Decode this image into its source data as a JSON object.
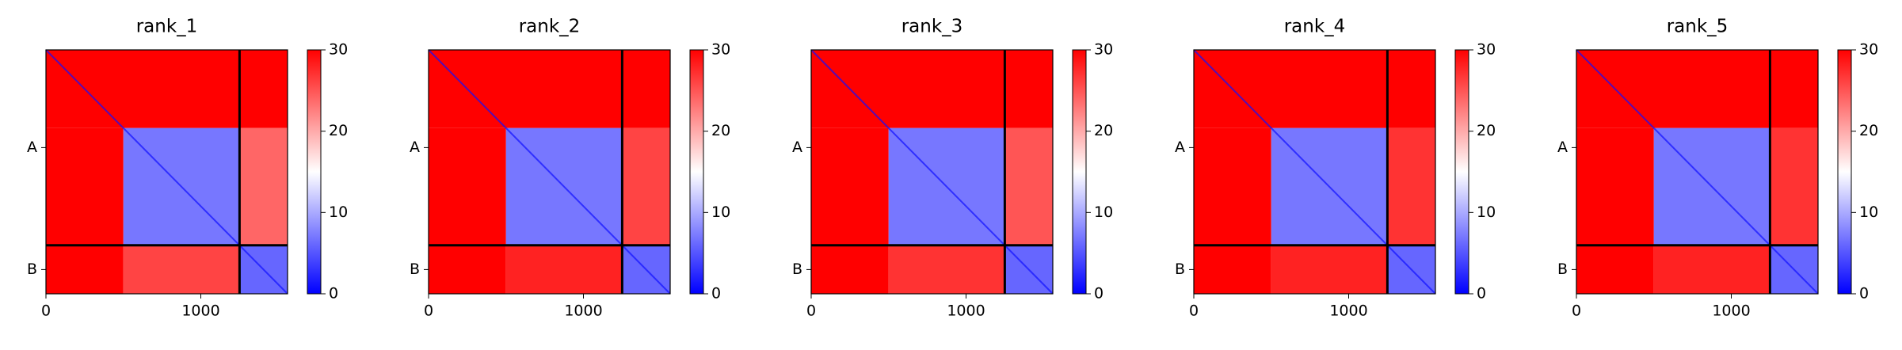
{
  "chart_data": [
    {
      "type": "heatmap",
      "title": "rank_1",
      "xlim": [
        0,
        1560
      ],
      "ylim": [
        1560,
        0
      ],
      "xticks": [
        0,
        1000
      ],
      "yticks": [
        {
          "value": 625,
          "label": "A"
        },
        {
          "value": 1405,
          "label": "B"
        }
      ],
      "chain_breaks": [
        1250
      ],
      "diagonal": 1,
      "clim": [
        0,
        30
      ],
      "cticks": [
        0,
        10,
        20,
        30
      ],
      "colormap": [
        "#0000ff",
        "#ffffff",
        "#ff0000"
      ],
      "cells": [
        {
          "x": [
            0,
            1560
          ],
          "y": [
            0,
            500
          ],
          "value": 30
        },
        {
          "x": [
            0,
            500
          ],
          "y": [
            500,
            1560
          ],
          "value": 30
        },
        {
          "x": [
            500,
            1250
          ],
          "y": [
            500,
            1250
          ],
          "value": 7
        },
        {
          "x": [
            1250,
            1560
          ],
          "y": [
            500,
            1250
          ],
          "value": 24
        },
        {
          "x": [
            500,
            1250
          ],
          "y": [
            1250,
            1560
          ],
          "value": 26
        },
        {
          "x": [
            1250,
            1560
          ],
          "y": [
            1250,
            1560
          ],
          "value": 6
        }
      ]
    },
    {
      "type": "heatmap",
      "title": "rank_2",
      "xlim": [
        0,
        1560
      ],
      "ylim": [
        1560,
        0
      ],
      "xticks": [
        0,
        1000
      ],
      "yticks": [
        {
          "value": 625,
          "label": "A"
        },
        {
          "value": 1405,
          "label": "B"
        }
      ],
      "chain_breaks": [
        1250
      ],
      "diagonal": 1,
      "clim": [
        0,
        30
      ],
      "cticks": [
        0,
        10,
        20,
        30
      ],
      "colormap": [
        "#0000ff",
        "#ffffff",
        "#ff0000"
      ],
      "cells": [
        {
          "x": [
            0,
            1560
          ],
          "y": [
            0,
            500
          ],
          "value": 30
        },
        {
          "x": [
            0,
            500
          ],
          "y": [
            500,
            1560
          ],
          "value": 30
        },
        {
          "x": [
            500,
            1250
          ],
          "y": [
            500,
            1250
          ],
          "value": 7
        },
        {
          "x": [
            1250,
            1560
          ],
          "y": [
            500,
            1250
          ],
          "value": 26
        },
        {
          "x": [
            500,
            1250
          ],
          "y": [
            1250,
            1560
          ],
          "value": 28
        },
        {
          "x": [
            1250,
            1560
          ],
          "y": [
            1250,
            1560
          ],
          "value": 6
        }
      ]
    },
    {
      "type": "heatmap",
      "title": "rank_3",
      "xlim": [
        0,
        1560
      ],
      "ylim": [
        1560,
        0
      ],
      "xticks": [
        0,
        1000
      ],
      "yticks": [
        {
          "value": 625,
          "label": "A"
        },
        {
          "value": 1405,
          "label": "B"
        }
      ],
      "chain_breaks": [
        1250
      ],
      "diagonal": 1,
      "clim": [
        0,
        30
      ],
      "cticks": [
        0,
        10,
        20,
        30
      ],
      "colormap": [
        "#0000ff",
        "#ffffff",
        "#ff0000"
      ],
      "cells": [
        {
          "x": [
            0,
            1560
          ],
          "y": [
            0,
            500
          ],
          "value": 30
        },
        {
          "x": [
            0,
            500
          ],
          "y": [
            500,
            1560
          ],
          "value": 30
        },
        {
          "x": [
            500,
            1250
          ],
          "y": [
            500,
            1250
          ],
          "value": 7
        },
        {
          "x": [
            1250,
            1560
          ],
          "y": [
            500,
            1250
          ],
          "value": 25
        },
        {
          "x": [
            500,
            1250
          ],
          "y": [
            1250,
            1560
          ],
          "value": 27
        },
        {
          "x": [
            1250,
            1560
          ],
          "y": [
            1250,
            1560
          ],
          "value": 6
        }
      ]
    },
    {
      "type": "heatmap",
      "title": "rank_4",
      "xlim": [
        0,
        1560
      ],
      "ylim": [
        1560,
        0
      ],
      "xticks": [
        0,
        1000
      ],
      "yticks": [
        {
          "value": 625,
          "label": "A"
        },
        {
          "value": 1405,
          "label": "B"
        }
      ],
      "chain_breaks": [
        1250
      ],
      "diagonal": 1,
      "clim": [
        0,
        30
      ],
      "cticks": [
        0,
        10,
        20,
        30
      ],
      "colormap": [
        "#0000ff",
        "#ffffff",
        "#ff0000"
      ],
      "cells": [
        {
          "x": [
            0,
            1560
          ],
          "y": [
            0,
            500
          ],
          "value": 30
        },
        {
          "x": [
            0,
            500
          ],
          "y": [
            500,
            1560
          ],
          "value": 30
        },
        {
          "x": [
            500,
            1250
          ],
          "y": [
            500,
            1250
          ],
          "value": 7
        },
        {
          "x": [
            1250,
            1560
          ],
          "y": [
            500,
            1250
          ],
          "value": 27
        },
        {
          "x": [
            500,
            1250
          ],
          "y": [
            1250,
            1560
          ],
          "value": 28
        },
        {
          "x": [
            1250,
            1560
          ],
          "y": [
            1250,
            1560
          ],
          "value": 6
        }
      ]
    },
    {
      "type": "heatmap",
      "title": "rank_5",
      "xlim": [
        0,
        1560
      ],
      "ylim": [
        1560,
        0
      ],
      "xticks": [
        0,
        1000
      ],
      "yticks": [
        {
          "value": 625,
          "label": "A"
        },
        {
          "value": 1405,
          "label": "B"
        }
      ],
      "chain_breaks": [
        1250
      ],
      "diagonal": 1,
      "clim": [
        0,
        30
      ],
      "cticks": [
        0,
        10,
        20,
        30
      ],
      "colormap": [
        "#0000ff",
        "#ffffff",
        "#ff0000"
      ],
      "cells": [
        {
          "x": [
            0,
            1560
          ],
          "y": [
            0,
            500
          ],
          "value": 30
        },
        {
          "x": [
            0,
            500
          ],
          "y": [
            500,
            1560
          ],
          "value": 30
        },
        {
          "x": [
            500,
            1250
          ],
          "y": [
            500,
            1250
          ],
          "value": 7
        },
        {
          "x": [
            1250,
            1560
          ],
          "y": [
            500,
            1250
          ],
          "value": 27
        },
        {
          "x": [
            500,
            1250
          ],
          "y": [
            1250,
            1560
          ],
          "value": 28
        },
        {
          "x": [
            1250,
            1560
          ],
          "y": [
            1250,
            1560
          ],
          "value": 6
        }
      ]
    }
  ]
}
